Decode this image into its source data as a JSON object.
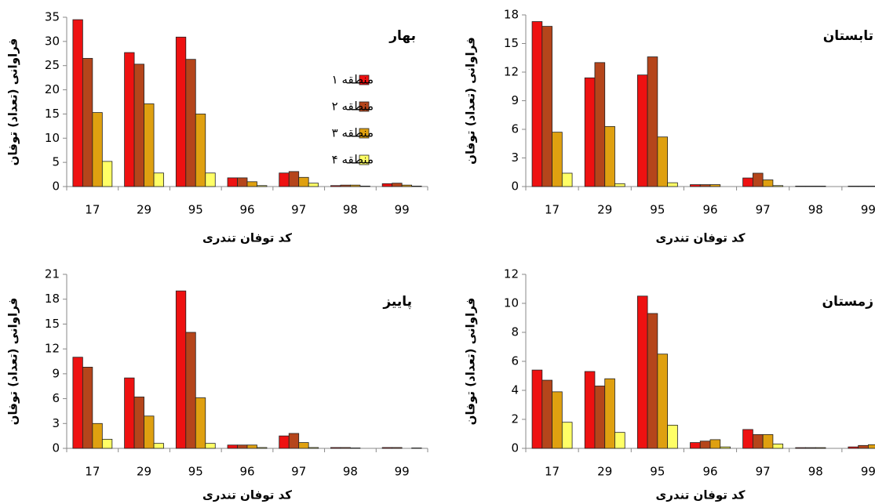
{
  "chart_data": [
    {
      "type": "bar",
      "title": "بهار",
      "x_label": "کد توفان تندری",
      "y_label": "فراوانی (تعداد) توفان",
      "categories": [
        "17",
        "29",
        "95",
        "96",
        "97",
        "98",
        "99"
      ],
      "series": [
        {
          "name": "منطقه ۱",
          "color": "#ee1111",
          "values": [
            34.5,
            27.7,
            30.9,
            1.8,
            2.8,
            0.2,
            0.6
          ]
        },
        {
          "name": "منطقه ۲",
          "color": "#b5451b",
          "values": [
            26.5,
            25.3,
            26.3,
            1.8,
            3.1,
            0.3,
            0.7
          ]
        },
        {
          "name": "منطقه ۳",
          "color": "#dfa010",
          "values": [
            15.3,
            17.1,
            15.0,
            1.0,
            1.9,
            0.3,
            0.3
          ]
        },
        {
          "name": "منطقه ۴",
          "color": "#ffff66",
          "values": [
            5.2,
            2.8,
            2.8,
            0.2,
            0.7,
            0.1,
            0.1
          ]
        }
      ],
      "ylim": [
        0,
        35
      ],
      "yticks": [
        0,
        5,
        10,
        15,
        20,
        25,
        30,
        35
      ],
      "legend": "right"
    },
    {
      "type": "bar",
      "title": "تابستان",
      "x_label": "کد توفان تندری",
      "y_label": "فراوانی (تعداد) توفان",
      "categories": [
        "17",
        "29",
        "95",
        "96",
        "97",
        "98",
        "99"
      ],
      "series": [
        {
          "color": "#ee1111",
          "values": [
            17.3,
            11.4,
            11.7,
            0.2,
            0.9,
            0.05,
            0.05
          ]
        },
        {
          "color": "#b5451b",
          "values": [
            16.8,
            13.0,
            13.6,
            0.2,
            1.4,
            0.05,
            0.05
          ]
        },
        {
          "color": "#dfa010",
          "values": [
            5.7,
            6.3,
            5.2,
            0.2,
            0.7,
            0.05,
            0.05
          ]
        },
        {
          "color": "#ffff66",
          "values": [
            1.4,
            0.3,
            0.4,
            0,
            0.1,
            0,
            0
          ]
        }
      ],
      "ylim": [
        0,
        18
      ],
      "yticks": [
        0,
        3,
        6,
        9,
        12,
        15,
        18
      ]
    },
    {
      "type": "bar",
      "title": "پاییز",
      "x_label": "کد توفان تندری",
      "y_label": "فراوانی (تعداد) توفان",
      "categories": [
        "17",
        "29",
        "95",
        "96",
        "97",
        "98",
        "99"
      ],
      "series": [
        {
          "color": "#ee1111",
          "values": [
            11.0,
            8.5,
            19.0,
            0.4,
            1.5,
            0.1,
            0.1
          ]
        },
        {
          "color": "#b5451b",
          "values": [
            9.8,
            6.2,
            14.0,
            0.4,
            1.8,
            0.1,
            0.1
          ]
        },
        {
          "color": "#dfa010",
          "values": [
            3.0,
            3.9,
            6.1,
            0.4,
            0.7,
            0.05,
            0
          ]
        },
        {
          "color": "#ffff66",
          "values": [
            1.1,
            0.6,
            0.6,
            0.1,
            0.1,
            0,
            0.05
          ]
        }
      ],
      "ylim": [
        0,
        21
      ],
      "yticks": [
        0,
        3,
        6,
        9,
        12,
        15,
        18,
        21
      ]
    },
    {
      "type": "bar",
      "title": "زمستان",
      "x_label": "کد توفان تندری",
      "y_label": "فراوانی (تعداد) توفان",
      "categories": [
        "17",
        "29",
        "95",
        "96",
        "97",
        "98",
        "99"
      ],
      "series": [
        {
          "color": "#ee1111",
          "values": [
            5.4,
            5.3,
            10.5,
            0.4,
            1.3,
            0.05,
            0.1
          ]
        },
        {
          "color": "#b5451b",
          "values": [
            4.7,
            4.3,
            9.3,
            0.5,
            0.95,
            0.05,
            0.2
          ]
        },
        {
          "color": "#dfa010",
          "values": [
            3.9,
            4.8,
            6.5,
            0.6,
            0.95,
            0.05,
            0.25
          ]
        },
        {
          "color": "#ffff66",
          "values": [
            1.8,
            1.1,
            1.6,
            0.1,
            0.3,
            0,
            0
          ]
        }
      ],
      "ylim": [
        0,
        12
      ],
      "yticks": [
        0,
        2,
        4,
        6,
        8,
        10,
        12
      ]
    }
  ]
}
